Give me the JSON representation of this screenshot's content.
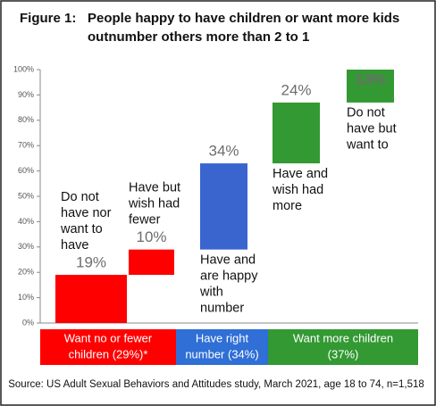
{
  "chart_data": {
    "type": "waterfall",
    "figure_label": "Figure 1:",
    "title": [
      "People happy to have children or want more kids",
      "outnumber others more than 2 to 1"
    ],
    "values": [
      19,
      10,
      34,
      24,
      13
    ],
    "value_labels": [
      "19%",
      "10%",
      "34%",
      "24%",
      "13%"
    ],
    "colors": [
      "#ff0000",
      "#ff0000",
      "#3a65cf",
      "#339933",
      "#339933"
    ],
    "annotations": [
      [
        "Do not",
        "have nor",
        "want to",
        "have"
      ],
      [
        "Have but",
        "wish had",
        "fewer"
      ],
      [
        "Have and",
        "are happy",
        "with",
        "number"
      ],
      [
        "Have and",
        "wish had",
        "more"
      ],
      [
        "Do not",
        "have but",
        "want to"
      ]
    ],
    "groups": [
      {
        "label": [
          "Want no or fewer",
          "children (29%)*"
        ],
        "color": "#ff0000"
      },
      {
        "label": [
          "Have right",
          "number (34%)"
        ],
        "color": "#2f6fd6"
      },
      {
        "label": [
          "Want more children",
          "(37%)"
        ],
        "color": "#339933"
      }
    ],
    "ylim": [
      0,
      100
    ],
    "yticks": [
      {
        "value": 0,
        "label": "0%"
      },
      {
        "value": 10,
        "label": "10%"
      },
      {
        "value": 20,
        "label": "20%"
      },
      {
        "value": 30,
        "label": "30%"
      },
      {
        "value": 40,
        "label": "40%"
      },
      {
        "value": 50,
        "label": "50%"
      },
      {
        "value": 60,
        "label": "60%"
      },
      {
        "value": 70,
        "label": "70%"
      },
      {
        "value": 80,
        "label": "80%"
      },
      {
        "value": 90,
        "label": "90%"
      },
      {
        "value": 100,
        "label": "100%"
      }
    ],
    "source": "Source: US Adult Sexual Behaviors and Attitudes study, March 2021, age 18 to 74, n=1,518"
  }
}
